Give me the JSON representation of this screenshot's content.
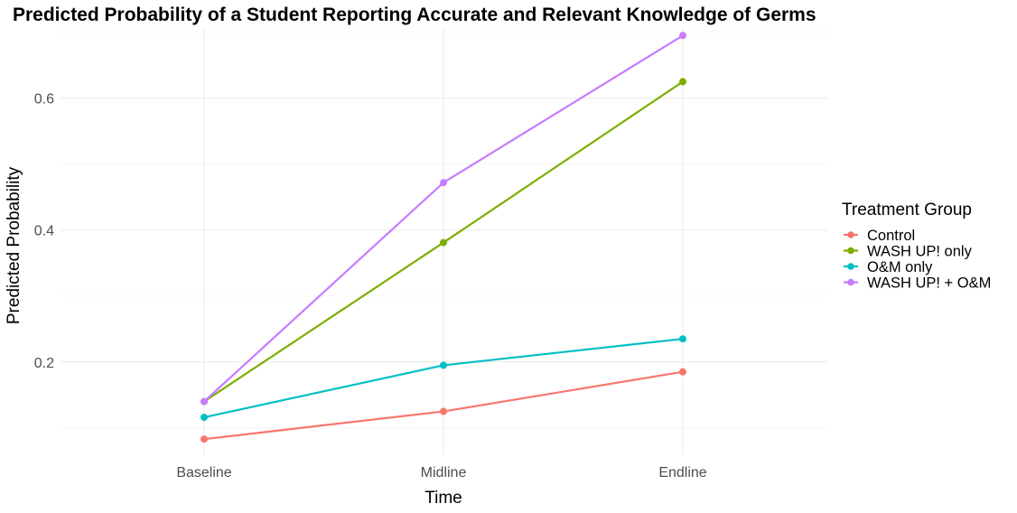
{
  "chart_data": {
    "type": "line",
    "title": "Predicted Probability of a Student Reporting Accurate and Relevant Knowledge of Germs",
    "xlabel": "Time",
    "ylabel": "Predicted Probability",
    "categories": [
      "Baseline",
      "Midline",
      "Endline"
    ],
    "ylim": [
      0.06,
      0.705
    ],
    "yticks": [
      0.2,
      0.4,
      0.6
    ],
    "ytick_labels": [
      "0.2",
      "0.4",
      "0.6"
    ],
    "grid": true,
    "legend": {
      "title": "Treatment Group",
      "position": "right"
    },
    "series": [
      {
        "name": "Control",
        "color": "#F8766D",
        "values": [
          0.083,
          0.125,
          0.185
        ]
      },
      {
        "name": "WASH UP! only",
        "color": "#7CAE00",
        "values": [
          0.14,
          0.381,
          0.625
        ]
      },
      {
        "name": "O&M only",
        "color": "#00BFC4",
        "values": [
          0.116,
          0.195,
          0.235
        ]
      },
      {
        "name": "WASH UP! + O&M",
        "color": "#C77CFF",
        "values": [
          0.14,
          0.472,
          0.695
        ]
      }
    ]
  }
}
